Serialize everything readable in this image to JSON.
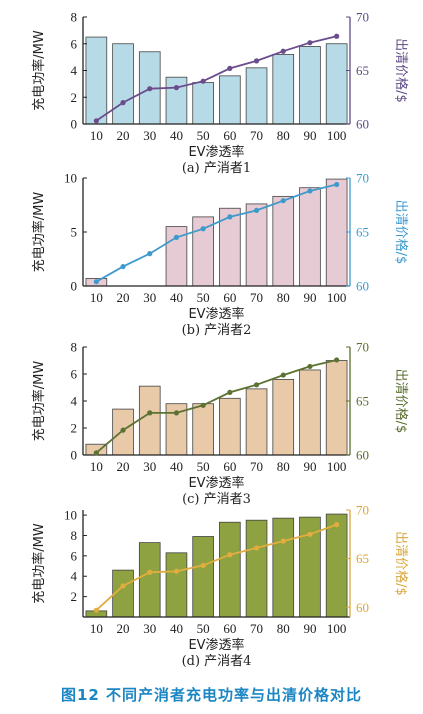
{
  "figure_caption": "图12 不同产消者充电功率与出清价格对比",
  "chart_data": [
    {
      "type": "bar",
      "caption": "(a) 产消者1",
      "xlabel": "EV渗透率",
      "ylabel": "充电功率/MW",
      "y2label": "出清价格/$",
      "categories": [
        "10",
        "20",
        "30",
        "40",
        "50",
        "60",
        "70",
        "80",
        "90",
        "100"
      ],
      "ylim": [
        0,
        8
      ],
      "yticks": [
        0,
        2,
        4,
        6,
        8
      ],
      "y2lim": [
        60,
        70
      ],
      "y2ticks": [
        60,
        65,
        70
      ],
      "series": [
        {
          "type": "bar",
          "values": [
            6.5,
            6.0,
            5.4,
            3.5,
            3.1,
            3.6,
            4.2,
            5.2,
            5.8,
            6.0
          ]
        },
        {
          "type": "line",
          "axis": "right",
          "values": [
            60.3,
            62.0,
            63.3,
            63.4,
            64.0,
            65.2,
            65.9,
            66.8,
            67.6,
            68.2
          ]
        }
      ],
      "colors": {
        "bar_fill": "#b7dbe6",
        "bar_stroke": "#444444",
        "line": "#6b4c8c",
        "right_axis": "#5e4b86"
      }
    },
    {
      "type": "bar",
      "caption": "(b) 产消者2",
      "xlabel": "EV渗透率",
      "ylabel": "充电功率/MW",
      "y2label": "出清价格/$",
      "categories": [
        "10",
        "20",
        "30",
        "40",
        "50",
        "60",
        "70",
        "80",
        "90",
        "100"
      ],
      "ylim": [
        0,
        10
      ],
      "yticks": [
        0,
        5,
        10
      ],
      "y2lim": [
        60,
        70
      ],
      "y2ticks": [
        60,
        65,
        70
      ],
      "series": [
        {
          "type": "bar",
          "values": [
            0.7,
            0,
            0,
            5.5,
            6.4,
            7.2,
            7.6,
            8.3,
            9.1,
            9.9
          ]
        },
        {
          "type": "line",
          "axis": "right",
          "values": [
            60.4,
            61.8,
            63.0,
            64.5,
            65.3,
            66.4,
            67.0,
            67.9,
            68.8,
            69.4
          ]
        }
      ],
      "colors": {
        "bar_fill": "#e6cbd5",
        "bar_stroke": "#444444",
        "line": "#3f9acb",
        "right_axis": "#3b9bd0"
      }
    },
    {
      "type": "bar",
      "caption": "(c) 产消者3",
      "xlabel": "EV渗透率",
      "ylabel": "充电功率/MW",
      "y2label": "出清价格/$",
      "categories": [
        "10",
        "20",
        "30",
        "40",
        "50",
        "60",
        "70",
        "80",
        "90",
        "100"
      ],
      "ylim": [
        0,
        8
      ],
      "yticks": [
        0,
        2,
        4,
        6,
        8
      ],
      "y2lim": [
        60,
        70
      ],
      "y2ticks": [
        60,
        65,
        70
      ],
      "series": [
        {
          "type": "bar",
          "values": [
            0.8,
            3.4,
            5.1,
            3.8,
            3.8,
            4.2,
            4.9,
            5.6,
            6.3,
            7.0
          ]
        },
        {
          "type": "line",
          "axis": "right",
          "values": [
            60.2,
            62.3,
            63.9,
            63.9,
            64.6,
            65.8,
            66.5,
            67.4,
            68.2,
            68.8
          ]
        }
      ],
      "colors": {
        "bar_fill": "#e8c9a8",
        "bar_stroke": "#444444",
        "line": "#5c7232",
        "right_axis": "#5a6e2e"
      }
    },
    {
      "type": "bar",
      "caption": "(d) 产消者4",
      "xlabel": "EV渗透率",
      "ylabel": "充电功率/MW",
      "y2label": "出清价格/$",
      "categories": [
        "10",
        "20",
        "30",
        "40",
        "50",
        "60",
        "70",
        "80",
        "90",
        "100"
      ],
      "ylim": [
        0,
        10.5
      ],
      "yticks": [
        2,
        4,
        6,
        8,
        10
      ],
      "y2lim": [
        59,
        70
      ],
      "y2ticks": [
        60,
        65,
        70
      ],
      "series": [
        {
          "type": "bar",
          "values": [
            0.6,
            4.6,
            7.3,
            6.3,
            7.9,
            9.3,
            9.5,
            9.7,
            9.8,
            10.1
          ]
        },
        {
          "type": "line",
          "axis": "right",
          "values": [
            59.7,
            62.2,
            63.6,
            63.7,
            64.3,
            65.4,
            66.1,
            66.8,
            67.5,
            68.5
          ]
        }
      ],
      "colors": {
        "bar_fill": "#8fa241",
        "bar_stroke": "#444444",
        "line": "#e1ad3e",
        "right_axis": "#d8a73a"
      }
    }
  ]
}
